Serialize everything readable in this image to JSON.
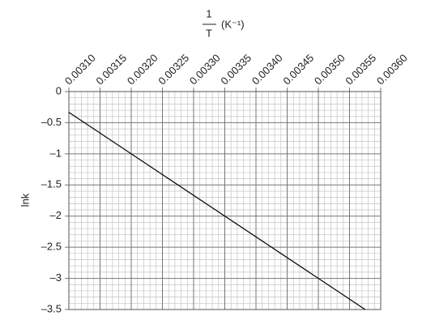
{
  "chart_data": {
    "type": "line",
    "x_label_numerator": "1",
    "x_label_denominator": "T",
    "x_label_unit": "(K⁻¹)",
    "y_label": "lnk",
    "x": [
      0.0031,
      0.003575
    ],
    "series": [
      {
        "color": "#000000",
        "values": [
          -0.333,
          -3.5
        ]
      }
    ],
    "xlim": [
      0.0031,
      0.0036
    ],
    "xticks": [
      {
        "value": 0.0031,
        "label": "0.00310"
      },
      {
        "value": 0.00315,
        "label": "0.00315"
      },
      {
        "value": 0.0032,
        "label": "0.00320"
      },
      {
        "value": 0.00325,
        "label": "0.00325"
      },
      {
        "value": 0.0033,
        "label": "0.00330"
      },
      {
        "value": 0.00335,
        "label": "0.00335"
      },
      {
        "value": 0.0034,
        "label": "0.00340"
      },
      {
        "value": 0.00345,
        "label": "0.00345"
      },
      {
        "value": 0.0035,
        "label": "0.00350"
      },
      {
        "value": 0.00355,
        "label": "0.00355"
      },
      {
        "value": 0.0036,
        "label": "0.00360"
      }
    ],
    "ylim": [
      -3.5,
      0
    ],
    "yticks": [
      0,
      {
        "value": -0.5,
        "label": "–0.5"
      },
      {
        "value": -1,
        "label": "–1"
      },
      {
        "value": -1.5,
        "label": "–1.5"
      },
      {
        "value": -2,
        "label": "–2"
      },
      {
        "value": -2.5,
        "label": "–2.5"
      },
      {
        "value": -3,
        "label": "–3"
      },
      {
        "value": -3.5,
        "label": "–3.5"
      }
    ],
    "grid": true,
    "minor_grid": true
  }
}
